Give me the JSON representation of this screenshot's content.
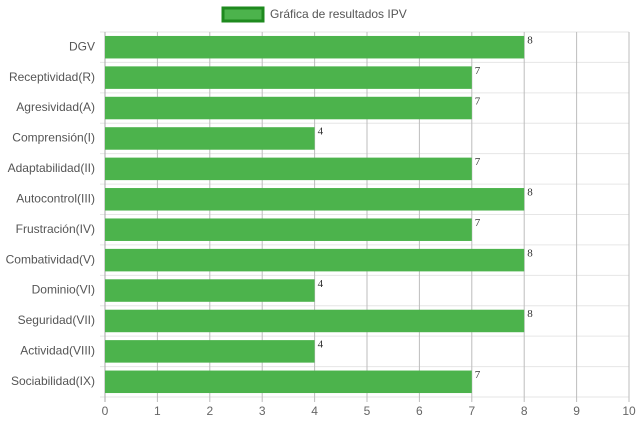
{
  "chart_data": {
    "type": "hbar",
    "categories": [
      "DGV",
      "Receptividad(R)",
      "Agresividad(A)",
      "Comprensión(I)",
      "Adaptabilidad(II)",
      "Autocontrol(III)",
      "Frustración(IV)",
      "Combatividad(V)",
      "Dominio(VI)",
      "Seguridad(VII)",
      "Actividad(VIII)",
      "Sociabilidad(IX)"
    ],
    "series": [
      {
        "name": "Gráfica de resultados IPV",
        "color": "#4cb34c",
        "border_color": "#1e8a1e",
        "values": [
          8,
          7,
          7,
          4,
          7,
          8,
          7,
          8,
          4,
          8,
          4,
          7
        ]
      }
    ],
    "xlim": [
      0,
      10
    ],
    "xticks": [
      0,
      1,
      2,
      3,
      4,
      5,
      6,
      7,
      8,
      9,
      10
    ],
    "grid": true,
    "legend": "top"
  }
}
